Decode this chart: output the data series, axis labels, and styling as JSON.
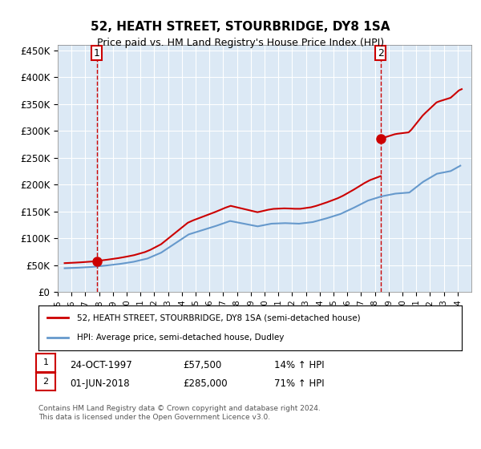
{
  "title": "52, HEATH STREET, STOURBRIDGE, DY8 1SA",
  "subtitle": "Price paid vs. HM Land Registry's House Price Index (HPI)",
  "ylim": [
    0,
    460000
  ],
  "yticks": [
    0,
    50000,
    100000,
    150000,
    200000,
    250000,
    300000,
    350000,
    400000,
    450000
  ],
  "ytick_labels": [
    "£0",
    "£50K",
    "£100K",
    "£150K",
    "£200K",
    "£250K",
    "£300K",
    "£350K",
    "£400K",
    "£450K"
  ],
  "xlim_start": 1995.0,
  "xlim_end": 2025.0,
  "xtick_years": [
    1995,
    1996,
    1997,
    1998,
    1999,
    2000,
    2001,
    2002,
    2003,
    2004,
    2005,
    2006,
    2007,
    2008,
    2009,
    2010,
    2011,
    2012,
    2013,
    2014,
    2015,
    2016,
    2017,
    2018,
    2019,
    2020,
    2021,
    2022,
    2023,
    2024
  ],
  "background_color": "#dce9f5",
  "plot_bg_color": "#dce9f5",
  "fig_bg_color": "#ffffff",
  "red_line_color": "#cc0000",
  "blue_line_color": "#6699cc",
  "marker1_x": 1997.82,
  "marker1_y": 57500,
  "marker2_x": 2018.42,
  "marker2_y": 285000,
  "vline1_x": 1997.82,
  "vline2_x": 2018.42,
  "legend_label1": "52, HEATH STREET, STOURBRIDGE, DY8 1SA (semi-detached house)",
  "legend_label2": "HPI: Average price, semi-detached house, Dudley",
  "table_row1_label": "1",
  "table_row1_date": "24-OCT-1997",
  "table_row1_price": "£57,500",
  "table_row1_hpi": "14% ↑ HPI",
  "table_row2_label": "2",
  "table_row2_date": "01-JUN-2018",
  "table_row2_price": "£285,000",
  "table_row2_hpi": "71% ↑ HPI",
  "footer": "Contains HM Land Registry data © Crown copyright and database right 2024.\nThis data is licensed under the Open Government Licence v3.0."
}
